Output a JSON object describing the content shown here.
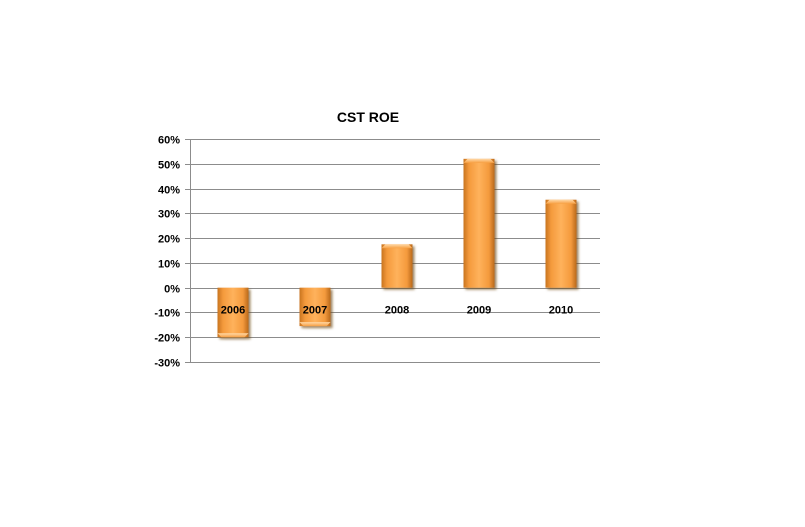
{
  "chart_data": {
    "type": "bar",
    "title": "CST ROE",
    "categories": [
      "2006",
      "2007",
      "2008",
      "2009",
      "2010"
    ],
    "values": [
      -20,
      -15.5,
      17.5,
      52,
      35.5
    ],
    "value_format": "percent",
    "ylim": [
      -30,
      60
    ],
    "y_ticks": [
      60,
      50,
      40,
      30,
      20,
      10,
      0,
      -10,
      -20,
      -30
    ],
    "y_tick_labels": [
      "60%",
      "50%",
      "40%",
      "30%",
      "20%",
      "10%",
      "0%",
      "-10%",
      "-20%",
      "-30%"
    ],
    "xlabel": "",
    "ylabel": "",
    "grid": true,
    "legend": "none",
    "colors": {
      "bar_fill": "#f7a043",
      "bar_highlight": "#ffc27a",
      "bar_shadow": "#8a5a1e",
      "grid": "#8c8c8c"
    }
  }
}
